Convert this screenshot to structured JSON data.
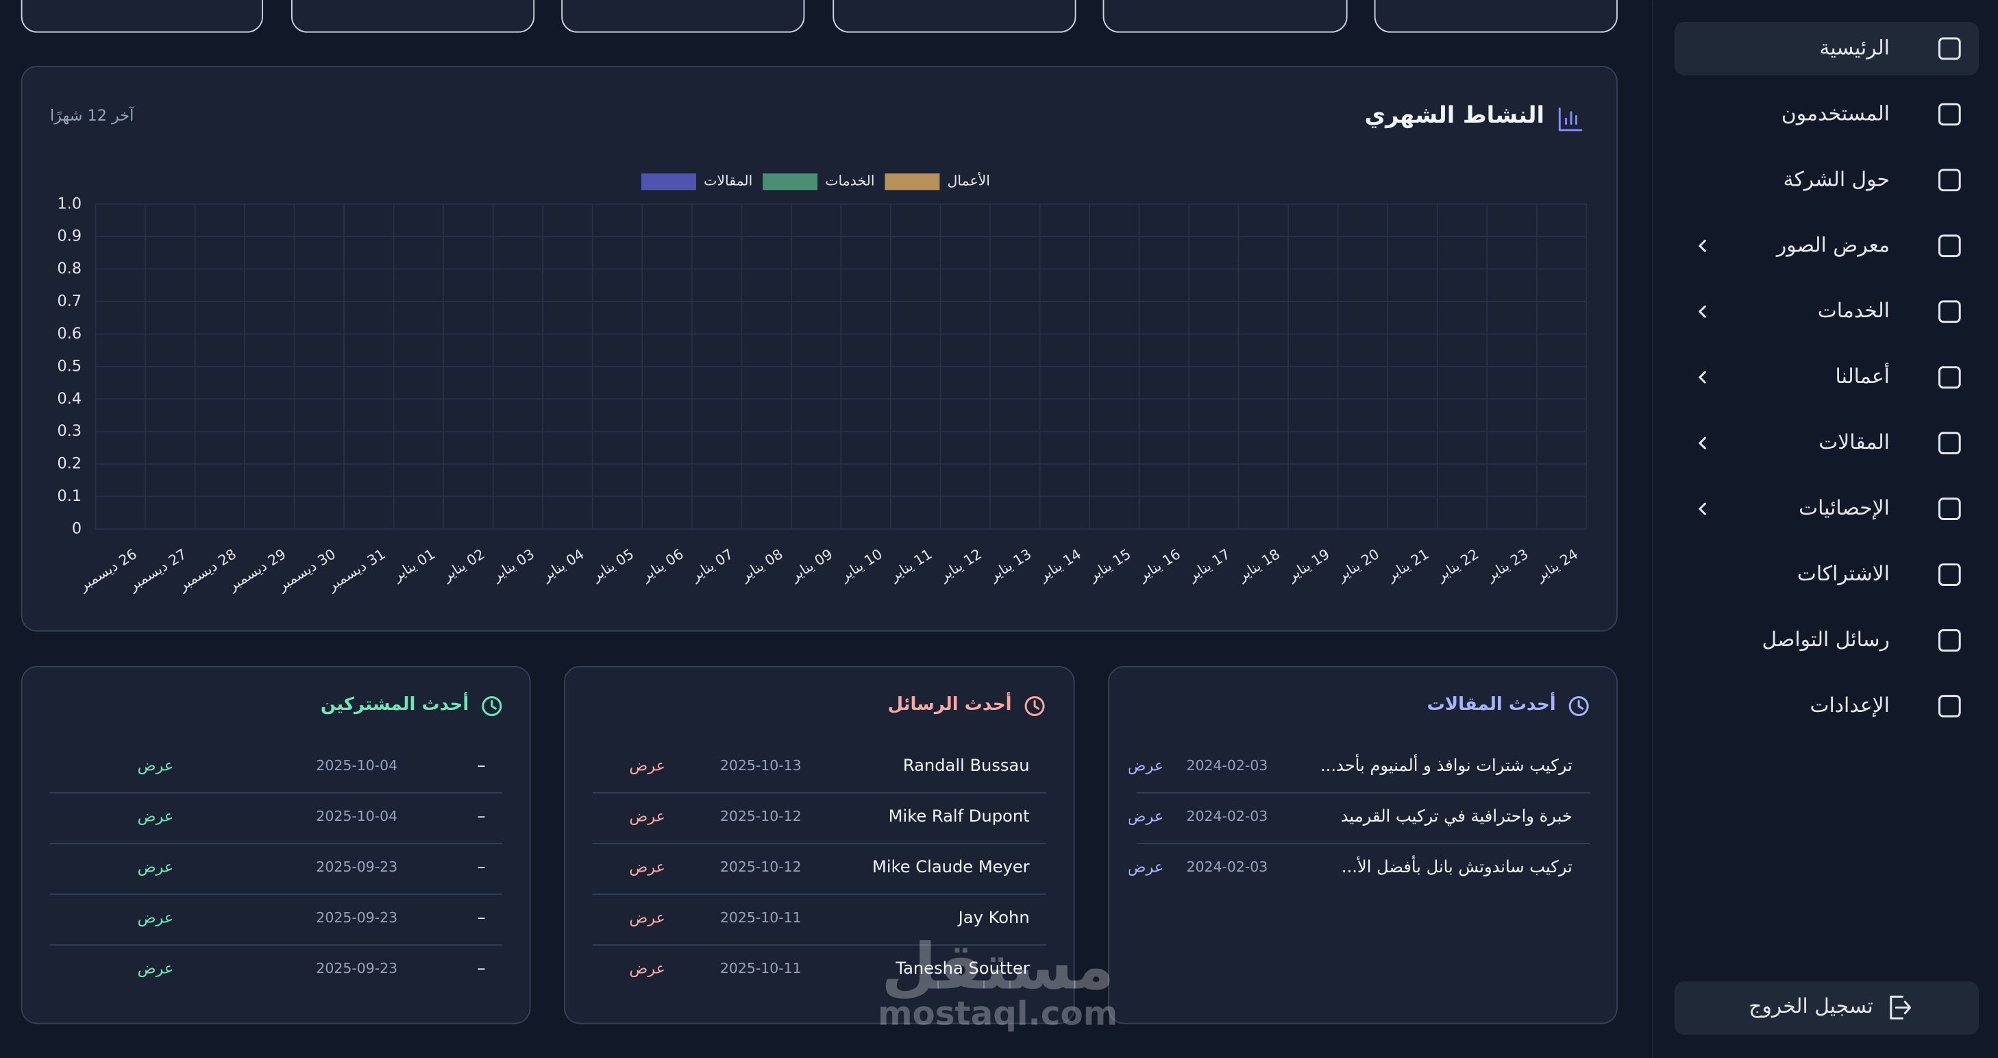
{
  "sidebar": {
    "items": [
      {
        "label": "الرئيسية",
        "active": true
      },
      {
        "label": "المستخدمون"
      },
      {
        "label": "حول الشركة"
      },
      {
        "label": "معرض الصور",
        "submenu": true
      },
      {
        "label": "الخدمات",
        "submenu": true
      },
      {
        "label": "أعمالنا",
        "submenu": true
      },
      {
        "label": "المقالات",
        "submenu": true
      },
      {
        "label": "الإحصائيات",
        "submenu": true
      },
      {
        "label": "الاشتراكات"
      },
      {
        "label": "رسائل التواصل"
      },
      {
        "label": "الإعدادات"
      }
    ],
    "logout": "تسجيل الخروج"
  },
  "activity": {
    "title": "النشاط الشهري",
    "period": "آخر 12 شهرًا"
  },
  "chart_data": {
    "type": "bar",
    "series": [
      {
        "name": "الأعمال",
        "color": "#b8905a"
      },
      {
        "name": "الخدمات",
        "color": "#4a8f73"
      },
      {
        "name": "المقالات",
        "color": "#5153b0"
      }
    ],
    "categories": [
      "26 ديسمبر",
      "27 ديسمبر",
      "28 ديسمبر",
      "29 ديسمبر",
      "30 ديسمبر",
      "31 ديسمبر",
      "01 يناير",
      "02 يناير",
      "03 يناير",
      "04 يناير",
      "05 يناير",
      "06 يناير",
      "07 يناير",
      "08 يناير",
      "09 يناير",
      "10 يناير",
      "11 يناير",
      "12 يناير",
      "13 يناير",
      "14 يناير",
      "15 يناير",
      "16 يناير",
      "17 يناير",
      "18 يناير",
      "19 يناير",
      "20 يناير",
      "21 يناير",
      "22 يناير",
      "23 يناير",
      "24 يناير"
    ],
    "ylim": [
      0,
      1
    ],
    "yticks": [
      0,
      0.1,
      0.2,
      0.3,
      0.4,
      0.5,
      0.6,
      0.7,
      0.8,
      0.9,
      {
        "value": 1,
        "label": "1.0"
      }
    ],
    "grid": true
  },
  "articles": {
    "title": "أحدث المقالات",
    "rows": [
      [
        "تركيب شترات نوافذ و ألمنيوم بأحد...",
        "2024-02-03",
        "عرض"
      ],
      [
        "خبرة واحترافية في تركيب القرميد",
        "2024-02-03",
        "عرض"
      ],
      [
        "تركيب ساندوتش بانل بأفضل الأ...",
        "2024-02-03",
        "عرض"
      ]
    ]
  },
  "messages": {
    "title": "أحدث الرسائل",
    "rows": [
      [
        "Randall Bussau",
        "2025-10-13",
        "عرض"
      ],
      [
        "Mike Ralf Dupont",
        "2025-10-12",
        "عرض"
      ],
      [
        "Mike Claude Meyer",
        "2025-10-12",
        "عرض"
      ],
      [
        "Jay Kohn",
        "2025-10-11",
        "عرض"
      ],
      [
        "Tanesha Soutter",
        "2025-10-11",
        "عرض"
      ]
    ]
  },
  "subscribers": {
    "title": "أحدث المشتركين",
    "rows": [
      [
        "–",
        "2025-10-04",
        "عرض"
      ],
      [
        "–",
        "2025-10-04",
        "عرض"
      ],
      [
        "–",
        "2025-09-23",
        "عرض"
      ],
      [
        "–",
        "2025-09-23",
        "عرض"
      ],
      [
        "–",
        "2025-09-23",
        "عرض"
      ]
    ]
  },
  "watermark": {
    "logo": "مستقل",
    "site": "mostaql.com"
  }
}
